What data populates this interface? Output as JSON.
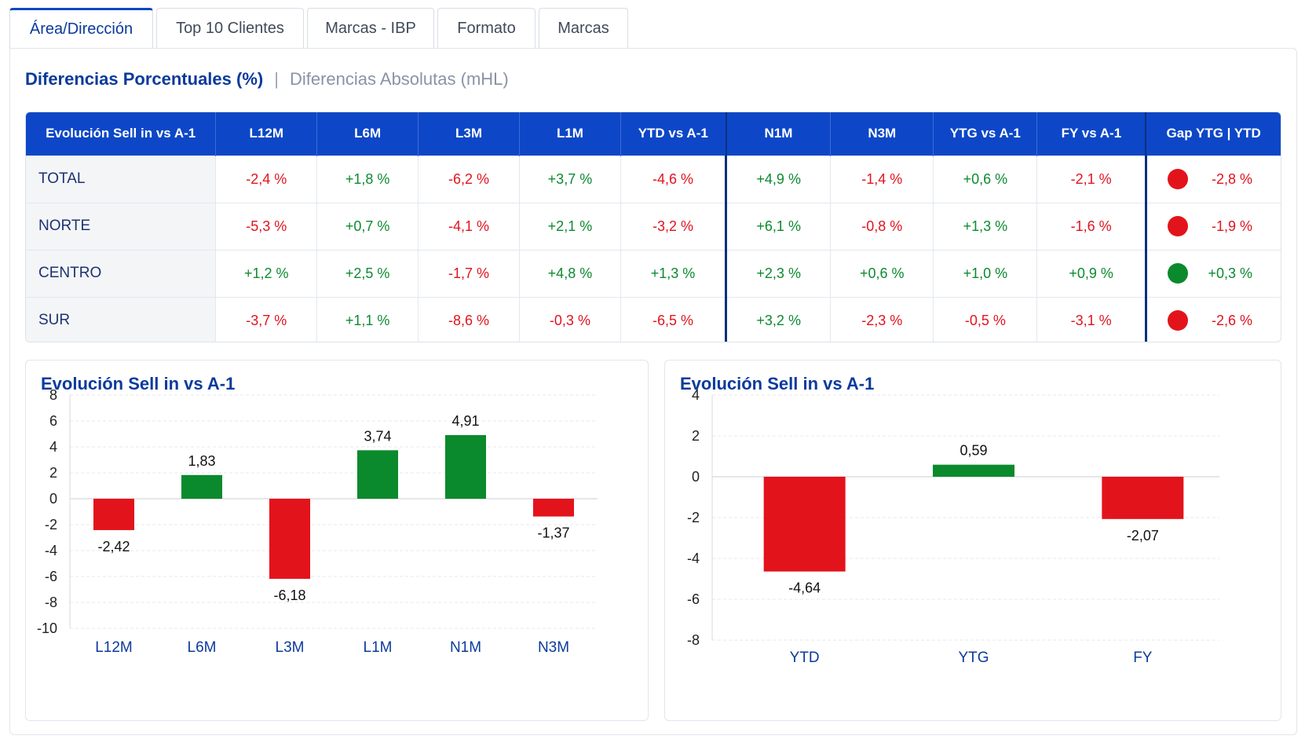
{
  "tabs": [
    "Área/Dirección",
    "Top 10 Clientes",
    "Marcas - IBP",
    "Formato",
    "Marcas"
  ],
  "active_tab": "Área/Dirección",
  "subnav": {
    "active": "Diferencias Porcentuales (%)",
    "separator": "|",
    "inactive": "Diferencias Absolutas (mHL)"
  },
  "table": {
    "headers": [
      "Evolución Sell in vs A-1",
      "L12M",
      "L6M",
      "L3M",
      "L1M",
      "YTD vs A-1",
      "N1M",
      "N3M",
      "YTG vs A-1",
      "FY vs A-1",
      "Gap YTG | YTD"
    ],
    "rows": [
      {
        "label": "TOTAL",
        "values": [
          "-2,4 %",
          "+1,8 %",
          "-6,2 %",
          "+3,7 %",
          "-4,6 %",
          "+4,9 %",
          "-1,4 %",
          "+0,6 %",
          "-2,1 %"
        ],
        "gap": "-2,8 %",
        "status": "red"
      },
      {
        "label": "NORTE",
        "values": [
          "-5,3 %",
          "+0,7 %",
          "-4,1 %",
          "+2,1 %",
          "-3,2 %",
          "+6,1 %",
          "-0,8 %",
          "+1,3 %",
          "-1,6 %"
        ],
        "gap": "-1,9 %",
        "status": "red"
      },
      {
        "label": "CENTRO",
        "values": [
          "+1,2 %",
          "+2,5 %",
          "-1,7 %",
          "+4,8 %",
          "+1,3 %",
          "+2,3 %",
          "+0,6 %",
          "+1,0 %",
          "+0,9 %"
        ],
        "gap": "+0,3 %",
        "status": "green"
      },
      {
        "label": "SUR",
        "values": [
          "-3,7 %",
          "+1,1 %",
          "-8,6 %",
          "-0,3 %",
          "-6,5 %",
          "+3,2 %",
          "-2,3 %",
          "-0,5 %",
          "-3,1 %"
        ],
        "gap": "-2,6 %",
        "status": "red"
      }
    ]
  },
  "colors": {
    "positive": "#0c8a2f",
    "negative": "#e0141e",
    "header": "#0d47c7",
    "bar_positive": "#0a8a2c",
    "bar_negative": "#e3131b"
  },
  "chart_data": [
    {
      "type": "bar",
      "title": "Evolución Sell in vs A-1",
      "categories": [
        "L12M",
        "L6M",
        "L3M",
        "L1M",
        "N1M",
        "N3M"
      ],
      "values": [
        -2.42,
        1.83,
        -6.18,
        3.74,
        4.91,
        -1.37
      ],
      "value_labels": [
        "-2,42",
        "1,83",
        "-6,18",
        "3,74",
        "4,91",
        "-1,37"
      ],
      "ylim": [
        -10,
        8
      ],
      "yticks": [
        8,
        6,
        4,
        2,
        0,
        -2,
        -4,
        -6,
        -8,
        -10
      ],
      "grid": true
    },
    {
      "type": "bar",
      "title": "Evolución Sell in vs A-1",
      "categories": [
        "YTD",
        "YTG",
        "FY"
      ],
      "values": [
        -4.64,
        0.59,
        -2.07
      ],
      "value_labels": [
        "-4,64",
        "0,59",
        "-2,07"
      ],
      "ylim": [
        -8,
        4
      ],
      "yticks": [
        4,
        2,
        0,
        -2,
        -4,
        -6,
        -8
      ],
      "grid": true
    }
  ]
}
